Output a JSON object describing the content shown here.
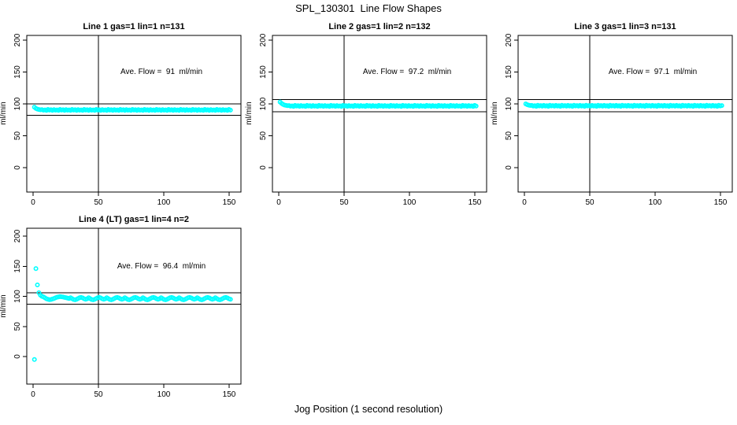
{
  "chart_data": {
    "type": "scatter",
    "title": "SPL_130301  Line Flow Shapes",
    "xlabel": "Jog Position (1 second resolution)",
    "point_color": "#00FFFF",
    "line_color": "#000000",
    "axes": {
      "x_ticks": [
        0,
        50,
        100,
        150
      ],
      "y_ticks": [
        0,
        50,
        100,
        150,
        200
      ],
      "x_tick_labels": [
        "0",
        "50",
        "100",
        "150"
      ],
      "y_tick_labels": [
        "0",
        "50",
        "100",
        "150",
        "200"
      ]
    },
    "panels": [
      {
        "title": "Line 1 gas=1 lin=1 n=131",
        "annotation": "Ave. Flow =  91  ml/min",
        "ylabel": "ml/min",
        "ave_flow": 91,
        "vline_x": 50,
        "hlines": [
          100.1,
          81.9
        ],
        "x_start": 1,
        "x_end": 151,
        "y": [
          95.0,
          93.0,
          91.8,
          91.2,
          90.8,
          91.1,
          90.1,
          90.6,
          89.7,
          91.4,
          90.3,
          90.9,
          89.9,
          91.1,
          90.1,
          90.6,
          89.7,
          91.4,
          90.3,
          90.9,
          89.9,
          91.1,
          90.1,
          90.6,
          89.7,
          91.4,
          90.3,
          90.9,
          89.9,
          91.1,
          90.1,
          90.6,
          89.7,
          91.4,
          90.3,
          90.9,
          89.9,
          91.1,
          90.1,
          90.6,
          89.7,
          91.4,
          90.3,
          90.9,
          89.9,
          91.1,
          90.1,
          90.6,
          89.7,
          91.4,
          90.3,
          90.9,
          89.9,
          91.1,
          90.1,
          90.6,
          89.7,
          91.4,
          90.3,
          90.9,
          89.9,
          91.1,
          90.1,
          90.6,
          89.7,
          91.4,
          90.3,
          90.9,
          89.9,
          91.1,
          90.1,
          90.6,
          89.7,
          91.4,
          90.3,
          90.9,
          89.9,
          91.1,
          90.1,
          90.6,
          89.7,
          91.4,
          90.3,
          90.9,
          89.9,
          91.1,
          90.1,
          90.6,
          89.7,
          91.4,
          90.3,
          90.9,
          89.9,
          91.1,
          90.1,
          90.6,
          89.7,
          91.4,
          90.3,
          90.9,
          89.9,
          91.1,
          90.1,
          90.6,
          89.7,
          91.4,
          90.3,
          90.9,
          89.9,
          91.1,
          90.1,
          90.6,
          89.7,
          91.4,
          90.3,
          90.9,
          89.9,
          91.1,
          90.1,
          90.6,
          89.7,
          91.4,
          90.3,
          90.9,
          89.9,
          91.1,
          90.1,
          90.6,
          89.7,
          91.4,
          90.3
        ]
      },
      {
        "title": "Line 2 gas=1 lin=2 n=132",
        "annotation": "Ave. Flow =  97.2  ml/min",
        "ylabel": "ml/min",
        "ave_flow": 97.2,
        "vline_x": 50,
        "hlines": [
          106.9,
          87.5
        ],
        "x_start": 1,
        "x_end": 151,
        "y": [
          103.0,
          100.8,
          99.2,
          98.2,
          97.6,
          97.2,
          97.4,
          96.4,
          96.9,
          96.0,
          97.7,
          96.6,
          97.2,
          96.2,
          97.4,
          96.4,
          96.9,
          96.0,
          97.7,
          96.6,
          97.2,
          96.2,
          97.4,
          96.4,
          96.9,
          96.0,
          97.7,
          96.6,
          97.2,
          96.2,
          97.4,
          96.4,
          96.9,
          96.0,
          97.7,
          96.6,
          97.2,
          96.2,
          97.4,
          96.4,
          96.9,
          96.0,
          97.7,
          96.6,
          97.2,
          96.2,
          97.4,
          96.4,
          96.9,
          96.0,
          97.7,
          96.6,
          97.2,
          96.2,
          97.4,
          96.4,
          96.9,
          96.0,
          97.7,
          96.6,
          97.2,
          96.2,
          97.4,
          96.4,
          96.9,
          96.0,
          97.7,
          96.6,
          97.2,
          96.2,
          97.4,
          96.4,
          96.9,
          96.0,
          97.7,
          96.6,
          97.2,
          96.2,
          97.4,
          96.4,
          96.9,
          96.0,
          97.7,
          96.6,
          97.2,
          96.2,
          97.4,
          96.4,
          96.9,
          96.0,
          97.7,
          96.6,
          97.2,
          96.2,
          97.4,
          96.4,
          96.9,
          96.0,
          97.7,
          96.6,
          97.2,
          96.2,
          97.4,
          96.4,
          96.9,
          96.0,
          97.7,
          96.6,
          97.2,
          96.2,
          97.4,
          96.4,
          96.9,
          96.0,
          97.7,
          96.6,
          97.2,
          96.2,
          97.4,
          96.4,
          96.9,
          96.0,
          97.7,
          96.6,
          97.2,
          96.2,
          97.4,
          96.4,
          96.9,
          96.0,
          97.7,
          96.6
        ]
      },
      {
        "title": "Line 3 gas=1 lin=3 n=131",
        "annotation": "Ave. Flow =  97.1  ml/min",
        "ylabel": "ml/min",
        "ave_flow": 97.1,
        "vline_x": 50,
        "hlines": [
          106.8,
          87.4
        ],
        "x_start": 1,
        "x_end": 151,
        "y": [
          100.0,
          98.8,
          98.0,
          97.5,
          97.6,
          96.6,
          97.1,
          96.2,
          97.9,
          96.8,
          97.4,
          96.4,
          97.6,
          96.6,
          97.1,
          96.2,
          97.9,
          96.8,
          97.4,
          96.4,
          97.6,
          96.6,
          97.1,
          96.2,
          97.9,
          96.8,
          97.4,
          96.4,
          97.6,
          96.6,
          97.1,
          96.2,
          97.9,
          96.8,
          97.4,
          96.4,
          97.6,
          96.6,
          97.1,
          96.2,
          97.9,
          96.8,
          97.4,
          96.4,
          97.6,
          96.6,
          97.1,
          96.2,
          97.9,
          96.8,
          97.4,
          96.4,
          97.6,
          96.6,
          97.1,
          96.2,
          97.9,
          96.8,
          97.4,
          96.4,
          97.6,
          96.6,
          97.1,
          96.2,
          97.9,
          96.8,
          97.4,
          96.4,
          97.6,
          96.6,
          97.1,
          96.2,
          97.9,
          96.8,
          97.4,
          96.4,
          97.6,
          96.6,
          97.1,
          96.2,
          97.9,
          96.8,
          97.4,
          96.4,
          97.6,
          96.6,
          97.1,
          96.2,
          97.9,
          96.8,
          97.4,
          96.4,
          97.6,
          96.6,
          97.1,
          96.2,
          97.9,
          96.8,
          97.4,
          96.4,
          97.6,
          96.6,
          97.1,
          96.2,
          97.9,
          96.8,
          97.4,
          96.4,
          97.6,
          96.6,
          97.1,
          96.2,
          97.9,
          96.8,
          97.4,
          96.4,
          97.6,
          96.6,
          97.1,
          96.2,
          97.9,
          96.8,
          97.4,
          96.4,
          97.6,
          96.6,
          97.1,
          96.2,
          97.9,
          96.8,
          97.4
        ]
      },
      {
        "title": "Line 4 (LT) gas=1 lin=4 n=2",
        "annotation": "Ave. Flow =  96.4  ml/min",
        "ylabel": "ml/min",
        "ave_flow": 96.4,
        "vline_x": 50,
        "hlines": [
          106.0,
          86.8
        ],
        "x_start": 1,
        "x_end": 151,
        "y": [
          -5.0,
          146.0,
          119.0,
          106.0,
          102.0,
          100.0,
          99.0,
          97.5,
          96.0,
          95.0,
          94.5,
          94.8,
          95.5,
          96.5,
          97.5,
          98.5,
          99.0,
          99.5,
          99.2,
          98.8,
          98.2,
          97.6,
          97.0,
          96.4,
          97.8,
          96.2,
          94.8,
          94.2,
          95.0,
          96.4,
          97.6,
          98.2,
          97.4,
          96.0,
          95.2,
          96.0,
          97.8,
          96.2,
          94.8,
          94.2,
          95.0,
          96.4,
          97.6,
          98.2,
          97.4,
          96.0,
          95.2,
          96.0,
          97.8,
          96.2,
          94.8,
          94.2,
          95.0,
          96.4,
          97.6,
          98.2,
          97.4,
          96.0,
          95.2,
          96.0,
          97.8,
          96.2,
          94.8,
          94.2,
          95.0,
          96.4,
          97.6,
          98.2,
          97.4,
          96.0,
          95.2,
          96.0,
          97.8,
          96.2,
          94.8,
          94.2,
          95.0,
          96.4,
          97.6,
          98.2,
          97.4,
          96.0,
          95.2,
          96.0,
          97.8,
          96.2,
          94.8,
          94.2,
          95.0,
          96.4,
          97.6,
          98.2,
          97.4,
          96.0,
          95.2,
          96.0,
          97.8,
          96.2,
          94.8,
          94.2,
          95.0,
          96.4,
          97.6,
          98.2,
          97.4,
          96.0,
          95.2,
          96.0,
          97.8,
          96.2,
          94.8,
          94.2,
          95.0,
          96.4,
          97.6,
          98.2,
          97.4,
          96.0,
          95.2,
          96.0,
          97.8,
          96.2,
          94.8,
          94.2,
          95.0,
          96.4,
          97.6,
          98.2,
          97.4,
          96.0,
          95.2
        ]
      }
    ]
  }
}
